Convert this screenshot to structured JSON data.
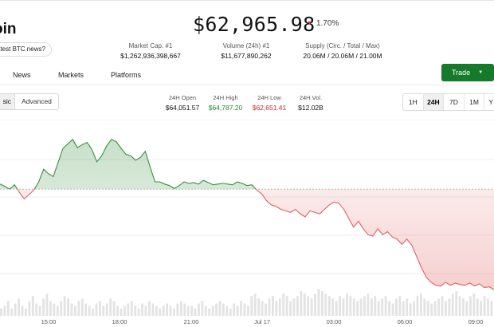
{
  "coin": {
    "name": "oin",
    "news_prompt": "atest BTC news?"
  },
  "price": {
    "value": "$62,965.98",
    "change": "1.70%",
    "direction": "down",
    "change_color": "#d33a3a"
  },
  "stats": {
    "market_cap": {
      "label": "Market Cap. #1",
      "value": "$1,262,936,398,667"
    },
    "volume": {
      "label": "Volume (24h) #1",
      "value": "$11,677,890,262"
    },
    "supply": {
      "label": "Supply (Circ. / Total / Max)",
      "value": "20.06M / 20.06M / 21.00M"
    }
  },
  "trade_button": {
    "label": "Trade",
    "color": "#157a29"
  },
  "tabs": [
    "News",
    "Markets",
    "Platforms"
  ],
  "chart_mode": {
    "basic": "sic",
    "advanced": "Advanced",
    "selected": "basic"
  },
  "day_stats": {
    "open": {
      "label": "24H Open",
      "value": "$64,051.57"
    },
    "high": {
      "label": "24H High",
      "value": "$64,787.20",
      "color": "#1f8a2e"
    },
    "low": {
      "label": "24H Low",
      "value": "$62,651.41",
      "color": "#cc2b2b"
    },
    "vol": {
      "label": "24H Vol.",
      "value": "$12.02B"
    }
  },
  "time_ranges": {
    "options": [
      "1H",
      "24H",
      "7D",
      "1M",
      "Y"
    ],
    "selected": "24H"
  },
  "chart_data": {
    "type": "line",
    "title": "",
    "xlabel": "",
    "ylabel": "",
    "x_ticks": [
      "15:00",
      "18:00",
      "21:00",
      "Jul 17",
      "03:00",
      "06:00",
      "09:00"
    ],
    "baseline_value": 64051.57,
    "ylim": [
      62500,
      64900
    ],
    "grid": true,
    "colors": {
      "above": "#3a8f3f",
      "below": "#e06060"
    },
    "series": [
      {
        "values": [
          64120,
          64090,
          64050,
          64110,
          64010,
          63920,
          63980,
          64040,
          64150,
          64320,
          64260,
          64220,
          64410,
          64600,
          64660,
          64720,
          64610,
          64650,
          64680,
          64580,
          64420,
          64500,
          64630,
          64720,
          64690,
          64600,
          64520,
          64500,
          64440,
          64480,
          64560,
          64350,
          64150,
          64150,
          64120,
          64100,
          64060,
          64100,
          64150,
          64130,
          64140,
          64120,
          64170,
          64140,
          64110,
          64120,
          64130,
          64120,
          64110,
          64150,
          64130,
          64100,
          64110,
          64040,
          63990,
          63900,
          63840,
          63820,
          63780,
          63760,
          63740,
          63780,
          63720,
          63680,
          63760,
          63740,
          63720,
          63780,
          63840,
          63880,
          63860,
          63780,
          63660,
          63540,
          63620,
          63520,
          63440,
          63420,
          63520,
          63440,
          63480,
          63410,
          63380,
          63310,
          63380,
          63300,
          63150,
          63000,
          62870,
          62800,
          62760,
          62750,
          62800,
          62760,
          62790,
          62770,
          62760,
          62790,
          62750,
          62780,
          62730,
          62740,
          62700
        ]
      }
    ],
    "volume": [
      3,
      4,
      6,
      3,
      5,
      7,
      4,
      3,
      6,
      8,
      5,
      4,
      7,
      9,
      6,
      5,
      4,
      6,
      8,
      7,
      5,
      4,
      6,
      7,
      5,
      4,
      3,
      5,
      6,
      4,
      5,
      7,
      6,
      4,
      3,
      4,
      5,
      6,
      4,
      3,
      5,
      4,
      6,
      5,
      4,
      3,
      4,
      5,
      4,
      3,
      5,
      6,
      5,
      4,
      4,
      3,
      5,
      6,
      4,
      3,
      4,
      5,
      6,
      5,
      4,
      3,
      5,
      4,
      6,
      5,
      4,
      8,
      9,
      7,
      6,
      5,
      7,
      8,
      6,
      7,
      9,
      8,
      6,
      7,
      8,
      10,
      9,
      8,
      7,
      9,
      11,
      10,
      9,
      8,
      7,
      6,
      8,
      7,
      9,
      8,
      7,
      6,
      7,
      8,
      9,
      7,
      8,
      6,
      7,
      8,
      6,
      5,
      7,
      8,
      6,
      7,
      5,
      6,
      8,
      9,
      7,
      6,
      5,
      6,
      7,
      8,
      6,
      7,
      9,
      10,
      8,
      7,
      6,
      8,
      9,
      7,
      6,
      8,
      7,
      6
    ]
  }
}
